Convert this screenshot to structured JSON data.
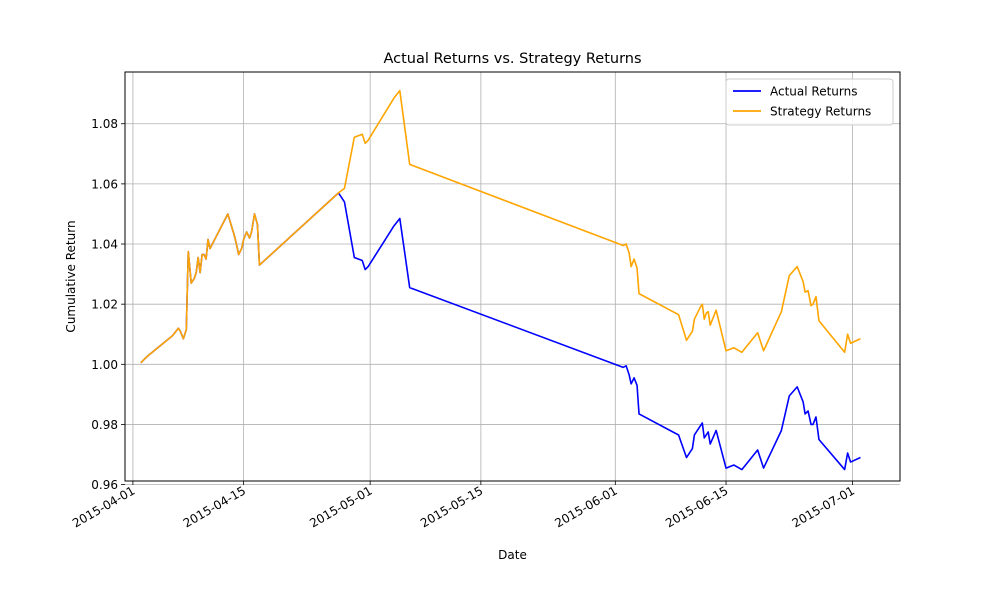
{
  "chart_data": {
    "type": "line",
    "title": "Actual Returns vs. Strategy Returns",
    "xlabel": "Date",
    "ylabel": "Cumulative Return",
    "xlim": [
      "2015-03-31",
      "2015-07-07"
    ],
    "ylim": [
      0.9612,
      1.0972
    ],
    "grid": true,
    "legend": "top-right",
    "x_ticks": [
      "2015-04-01",
      "2015-04-15",
      "2015-05-01",
      "2015-05-15",
      "2015-06-01",
      "2015-06-15",
      "2015-07-01"
    ],
    "y_ticks": [
      "0.96",
      "0.98",
      "1.00",
      "1.02",
      "1.04",
      "1.06",
      "1.08"
    ],
    "series": [
      {
        "name": "Actual Returns",
        "color": "#0000ff",
        "points": [
          [
            "2015-04-02",
            1.0005
          ],
          [
            "2015-04-02",
            1.0025
          ],
          [
            "2015-04-06",
            1.0095
          ],
          [
            "2015-04-06",
            1.012
          ],
          [
            "2015-04-07",
            1.011
          ],
          [
            "2015-04-07",
            1.0085
          ],
          [
            "2015-04-07",
            1.0115
          ],
          [
            "2015-04-08",
            1.0375
          ],
          [
            "2015-04-08",
            1.027
          ],
          [
            "2015-04-08",
            1.0285
          ],
          [
            "2015-04-09",
            1.0305
          ],
          [
            "2015-04-09",
            1.0355
          ],
          [
            "2015-04-09",
            1.0305
          ],
          [
            "2015-04-09",
            1.0365
          ],
          [
            "2015-04-10",
            1.0365
          ],
          [
            "2015-04-10",
            1.035
          ],
          [
            "2015-04-10",
            1.0415
          ],
          [
            "2015-04-10",
            1.0385
          ],
          [
            "2015-04-13",
            1.05
          ],
          [
            "2015-04-13",
            1.0435
          ],
          [
            "2015-04-14",
            1.041
          ],
          [
            "2015-04-14",
            1.0365
          ],
          [
            "2015-04-14",
            1.0385
          ],
          [
            "2015-04-15",
            1.0415
          ],
          [
            "2015-04-15",
            1.044
          ],
          [
            "2015-04-15",
            1.042
          ],
          [
            "2015-04-16",
            1.044
          ],
          [
            "2015-04-16",
            1.05
          ],
          [
            "2015-04-16",
            1.0465
          ],
          [
            "2015-04-17",
            1.033
          ],
          [
            "2015-04-27",
            1.057
          ],
          [
            "2015-04-27",
            1.054
          ],
          [
            "2015-04-29",
            1.0355
          ],
          [
            "2015-04-30",
            1.0345
          ],
          [
            "2015-04-30",
            1.0315
          ],
          [
            "2015-04-30",
            1.0325
          ],
          [
            "2015-05-04",
            1.046
          ],
          [
            "2015-05-04",
            1.0485
          ],
          [
            "2015-05-06",
            1.0255
          ],
          [
            "2015-06-02",
            0.999
          ],
          [
            "2015-06-02",
            0.9995
          ],
          [
            "2015-06-02",
            0.9965
          ],
          [
            "2015-06-03",
            0.9935
          ],
          [
            "2015-06-03",
            0.9955
          ],
          [
            "2015-06-03",
            0.993
          ],
          [
            "2015-06-04",
            0.9835
          ],
          [
            "2015-06-09",
            0.9765
          ],
          [
            "2015-06-10",
            0.969
          ],
          [
            "2015-06-10",
            0.972
          ],
          [
            "2015-06-11",
            0.9765
          ],
          [
            "2015-06-11",
            0.9795
          ],
          [
            "2015-06-12",
            0.9805
          ],
          [
            "2015-06-12",
            0.9755
          ],
          [
            "2015-06-12",
            0.9765
          ],
          [
            "2015-06-12",
            0.9775
          ],
          [
            "2015-06-13",
            0.9735
          ],
          [
            "2015-06-13",
            0.978
          ],
          [
            "2015-06-15",
            0.9655
          ],
          [
            "2015-06-16",
            0.9665
          ],
          [
            "2015-06-17",
            0.965
          ],
          [
            "2015-06-19",
            0.9715
          ],
          [
            "2015-06-19",
            0.9655
          ],
          [
            "2015-06-22",
            0.978
          ],
          [
            "2015-06-23",
            0.9895
          ],
          [
            "2015-06-24",
            0.9925
          ],
          [
            "2015-06-24",
            0.9875
          ],
          [
            "2015-06-25",
            0.9835
          ],
          [
            "2015-06-25",
            0.9845
          ],
          [
            "2015-06-25",
            0.98
          ],
          [
            "2015-06-26",
            0.98
          ],
          [
            "2015-06-26",
            0.9825
          ],
          [
            "2015-06-26",
            0.975
          ],
          [
            "2015-06-30",
            0.965
          ],
          [
            "2015-06-30",
            0.9705
          ],
          [
            "2015-06-30",
            0.9675
          ],
          [
            "2015-07-02",
            0.969
          ]
        ]
      },
      {
        "name": "Strategy Returns",
        "color": "#ffa500",
        "points": [
          [
            "2015-04-02",
            1.0005
          ],
          [
            "2015-04-02",
            1.0025
          ],
          [
            "2015-04-06",
            1.0095
          ],
          [
            "2015-04-06",
            1.012
          ],
          [
            "2015-04-07",
            1.011
          ],
          [
            "2015-04-07",
            1.0085
          ],
          [
            "2015-04-07",
            1.0115
          ],
          [
            "2015-04-08",
            1.0375
          ],
          [
            "2015-04-08",
            1.027
          ],
          [
            "2015-04-08",
            1.0285
          ],
          [
            "2015-04-09",
            1.0305
          ],
          [
            "2015-04-09",
            1.0355
          ],
          [
            "2015-04-09",
            1.0305
          ],
          [
            "2015-04-09",
            1.0365
          ],
          [
            "2015-04-10",
            1.0365
          ],
          [
            "2015-04-10",
            1.035
          ],
          [
            "2015-04-10",
            1.0415
          ],
          [
            "2015-04-10",
            1.0385
          ],
          [
            "2015-04-13",
            1.05
          ],
          [
            "2015-04-13",
            1.0435
          ],
          [
            "2015-04-14",
            1.041
          ],
          [
            "2015-04-14",
            1.0365
          ],
          [
            "2015-04-14",
            1.0385
          ],
          [
            "2015-04-15",
            1.0415
          ],
          [
            "2015-04-15",
            1.044
          ],
          [
            "2015-04-15",
            1.042
          ],
          [
            "2015-04-16",
            1.044
          ],
          [
            "2015-04-16",
            1.05
          ],
          [
            "2015-04-16",
            1.0465
          ],
          [
            "2015-04-17",
            1.033
          ],
          [
            "2015-04-27",
            1.057
          ],
          [
            "2015-04-27",
            1.0585
          ],
          [
            "2015-04-29",
            1.0755
          ],
          [
            "2015-04-30",
            1.0765
          ],
          [
            "2015-04-30",
            1.0735
          ],
          [
            "2015-04-30",
            1.0745
          ],
          [
            "2015-05-04",
            1.0885
          ],
          [
            "2015-05-04",
            1.091
          ],
          [
            "2015-05-06",
            1.0665
          ],
          [
            "2015-06-02",
            1.0395
          ],
          [
            "2015-06-02",
            1.04
          ],
          [
            "2015-06-02",
            1.037
          ],
          [
            "2015-06-03",
            1.0325
          ],
          [
            "2015-06-03",
            1.035
          ],
          [
            "2015-06-03",
            1.032
          ],
          [
            "2015-06-04",
            1.0235
          ],
          [
            "2015-06-09",
            1.0165
          ],
          [
            "2015-06-10",
            1.008
          ],
          [
            "2015-06-10",
            1.011
          ],
          [
            "2015-06-11",
            1.015
          ],
          [
            "2015-06-11",
            1.019
          ],
          [
            "2015-06-12",
            1.02
          ],
          [
            "2015-06-12",
            1.015
          ],
          [
            "2015-06-12",
            1.017
          ],
          [
            "2015-06-12",
            1.0175
          ],
          [
            "2015-06-13",
            1.013
          ],
          [
            "2015-06-13",
            1.018
          ],
          [
            "2015-06-15",
            1.0045
          ],
          [
            "2015-06-16",
            1.0055
          ],
          [
            "2015-06-17",
            1.004
          ],
          [
            "2015-06-19",
            1.0105
          ],
          [
            "2015-06-19",
            1.0045
          ],
          [
            "2015-06-22",
            1.0175
          ],
          [
            "2015-06-23",
            1.0295
          ],
          [
            "2015-06-24",
            1.0325
          ],
          [
            "2015-06-24",
            1.0275
          ],
          [
            "2015-06-25",
            1.024
          ],
          [
            "2015-06-25",
            1.0245
          ],
          [
            "2015-06-25",
            1.0195
          ],
          [
            "2015-06-26",
            1.02
          ],
          [
            "2015-06-26",
            1.0225
          ],
          [
            "2015-06-26",
            1.0145
          ],
          [
            "2015-06-30",
            1.004
          ],
          [
            "2015-06-30",
            1.01
          ],
          [
            "2015-06-30",
            1.007
          ],
          [
            "2015-07-02",
            1.0085
          ]
        ]
      }
    ]
  }
}
